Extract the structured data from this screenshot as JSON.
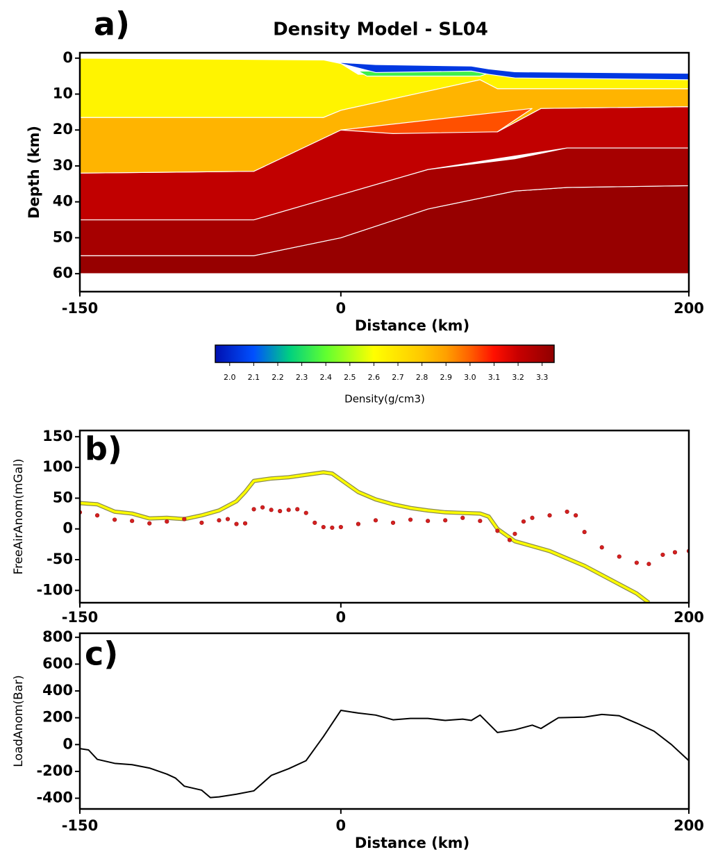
{
  "chart_data": [
    {
      "type": "polygons",
      "panel_label": "a)",
      "title": "Density Model - SL04",
      "x_label": "Distance (km)",
      "y_label": "Depth (km)",
      "xlim": [
        -150,
        200
      ],
      "ylim": [
        -1.5,
        65
      ],
      "invert_y": true,
      "xticks": [
        -150,
        0,
        200
      ],
      "yticks": [
        0,
        10,
        20,
        30,
        40,
        50,
        60
      ],
      "polygons": [
        {
          "density": 3.33,
          "x": [
            -150,
            -50,
            0,
            50,
            100,
            130,
            200,
            200,
            -150
          ],
          "depth": [
            55,
            55,
            50,
            42,
            37,
            36,
            35.5,
            60,
            60
          ]
        },
        {
          "density": 3.29,
          "x": [
            -150,
            -50,
            0,
            50,
            100,
            130,
            200,
            200,
            130,
            100,
            50,
            0,
            -50,
            -150
          ],
          "depth": [
            45,
            45,
            38,
            31,
            28,
            25,
            25,
            35.5,
            36,
            37,
            42,
            50,
            55,
            55
          ]
        },
        {
          "density": 3.22,
          "x": [
            -150,
            -50,
            0,
            90,
            115,
            200,
            200,
            130,
            50,
            0,
            -50,
            -150
          ],
          "depth": [
            32,
            31.5,
            20,
            20.5,
            14,
            13.5,
            25,
            25,
            31,
            38,
            45,
            45
          ]
        },
        {
          "density": 2.85,
          "x": [
            -150,
            -10,
            0,
            80,
            90,
            200,
            200,
            115,
            90,
            0,
            -50,
            -150
          ],
          "depth": [
            16.5,
            16.5,
            14.5,
            6,
            8.5,
            8.5,
            13.5,
            14,
            20.5,
            20,
            31.5,
            32
          ]
        },
        {
          "density": 3.02,
          "x": [
            0,
            110,
            90,
            30
          ],
          "depth": [
            20,
            14,
            20.5,
            21
          ]
        },
        {
          "density": 2.64,
          "x": [
            -150,
            -10,
            0,
            10,
            80,
            90,
            200,
            200,
            90,
            80,
            0,
            -10,
            -150
          ],
          "depth": [
            0,
            0.5,
            1.5,
            4.5,
            4.5,
            4,
            6,
            8.5,
            8.5,
            6,
            14.5,
            16.5,
            16.5
          ]
        },
        {
          "density": 2.35,
          "x": [
            10,
            75,
            85,
            80,
            15
          ],
          "depth": [
            3.6,
            3.5,
            4.2,
            5,
            5
          ]
        },
        {
          "density": 2.04,
          "x": [
            0,
            20,
            75,
            85,
            100,
            200,
            200,
            100,
            85,
            75,
            20,
            0
          ],
          "depth": [
            1.2,
            1.8,
            2.2,
            3,
            3.8,
            4.2,
            6,
            5.5,
            4.5,
            3.6,
            4,
            1.5
          ]
        }
      ],
      "colorbar": {
        "label": "Density(g/cm3)",
        "clim": [
          1.94,
          3.35
        ],
        "ticks": [
          {
            "value": 2,
            "label": "2.0"
          },
          2.1,
          2.2,
          2.3,
          2.4,
          2.5,
          2.6,
          2.7,
          2.8,
          2.9,
          {
            "value": 3,
            "label": "3.0"
          },
          3.1,
          3.2,
          3.3
        ],
        "colormap": {
          "values": [
            1.94,
            2.1,
            2.25,
            2.4,
            2.6,
            2.8,
            2.9,
            3.0,
            3.1,
            3.2,
            3.35
          ],
          "colors": [
            "#0010b0",
            "#0050ff",
            "#00d080",
            "#60ff30",
            "#ffff00",
            "#ffc800",
            "#ffa000",
            "#ff6000",
            "#ff1000",
            "#c80000",
            "#900000"
          ]
        }
      }
    },
    {
      "type": "line",
      "panel_label": "b)",
      "y_label": "FreeAirAnom(mGal)",
      "xlim": [
        -150,
        200
      ],
      "ylim": [
        -120,
        160
      ],
      "xticks": [
        -150,
        0,
        200
      ],
      "yticks": [
        -100,
        -50,
        0,
        50,
        100,
        150
      ],
      "series": [
        {
          "color": "#ffff00",
          "outline": "#8a8a50",
          "marker": "none",
          "x": [
            -150,
            -140,
            -130,
            -120,
            -110,
            -100,
            -90,
            -80,
            -70,
            -60,
            -55,
            -50,
            -40,
            -30,
            -20,
            -10,
            -5,
            0,
            10,
            20,
            30,
            40,
            50,
            60,
            70,
            80,
            85,
            90,
            100,
            110,
            120,
            130,
            140,
            150,
            160,
            170,
            177
          ],
          "values": [
            42,
            40,
            28,
            25,
            17,
            18,
            16,
            22,
            30,
            45,
            60,
            78,
            82,
            84,
            88,
            92,
            90,
            80,
            60,
            48,
            40,
            34,
            30,
            27,
            26,
            25,
            20,
            0,
            -20,
            -28,
            -36,
            -48,
            -60,
            -75,
            -90,
            -105,
            -120
          ]
        },
        {
          "color": "#d42020",
          "marker": "dot",
          "x": [
            -150,
            -140,
            -130,
            -120,
            -110,
            -100,
            -90,
            -80,
            -70,
            -65,
            -60,
            -55,
            -50,
            -45,
            -40,
            -35,
            -30,
            -25,
            -20,
            -15,
            -10,
            -5,
            0,
            10,
            20,
            30,
            40,
            50,
            60,
            70,
            80,
            90,
            97,
            100,
            105,
            110,
            120,
            130,
            135,
            140,
            150,
            160,
            170,
            177,
            185,
            192,
            200
          ],
          "values": [
            27,
            22,
            15,
            13,
            9,
            12,
            16,
            10,
            14,
            16,
            8,
            9,
            32,
            35,
            31,
            29,
            31,
            32,
            26,
            10,
            3,
            2,
            3,
            8,
            14,
            10,
            15,
            13,
            14,
            18,
            13,
            -3,
            -18,
            -8,
            12,
            18,
            22,
            28,
            22,
            -5,
            -30,
            -45,
            -55,
            -57,
            -42,
            -38,
            -36
          ]
        }
      ]
    },
    {
      "type": "line",
      "panel_label": "c)",
      "x_label": "Distance (km)",
      "y_label": "LoadAnom(Bar)",
      "xlim": [
        -150,
        200
      ],
      "ylim": [
        -480,
        830
      ],
      "xticks": [
        -150,
        0,
        200
      ],
      "yticks": [
        -400,
        -200,
        0,
        200,
        400,
        600,
        800
      ],
      "series": [
        {
          "color": "#000000",
          "marker": "none",
          "x": [
            -150,
            -145,
            -140,
            -130,
            -120,
            -110,
            -100,
            -95,
            -90,
            -80,
            -75,
            -70,
            -60,
            -50,
            -40,
            -30,
            -20,
            -10,
            0,
            10,
            20,
            30,
            40,
            50,
            60,
            70,
            75,
            80,
            90,
            100,
            110,
            115,
            120,
            125,
            140,
            150,
            160,
            170,
            180,
            190,
            200
          ],
          "values": [
            -30,
            -40,
            -110,
            -140,
            -150,
            -175,
            -220,
            -250,
            -310,
            -340,
            -395,
            -390,
            -370,
            -345,
            -230,
            -180,
            -120,
            60,
            255,
            235,
            220,
            185,
            195,
            195,
            180,
            190,
            180,
            220,
            90,
            110,
            145,
            120,
            160,
            200,
            205,
            225,
            215,
            160,
            100,
            0,
            -120
          ]
        }
      ]
    }
  ]
}
